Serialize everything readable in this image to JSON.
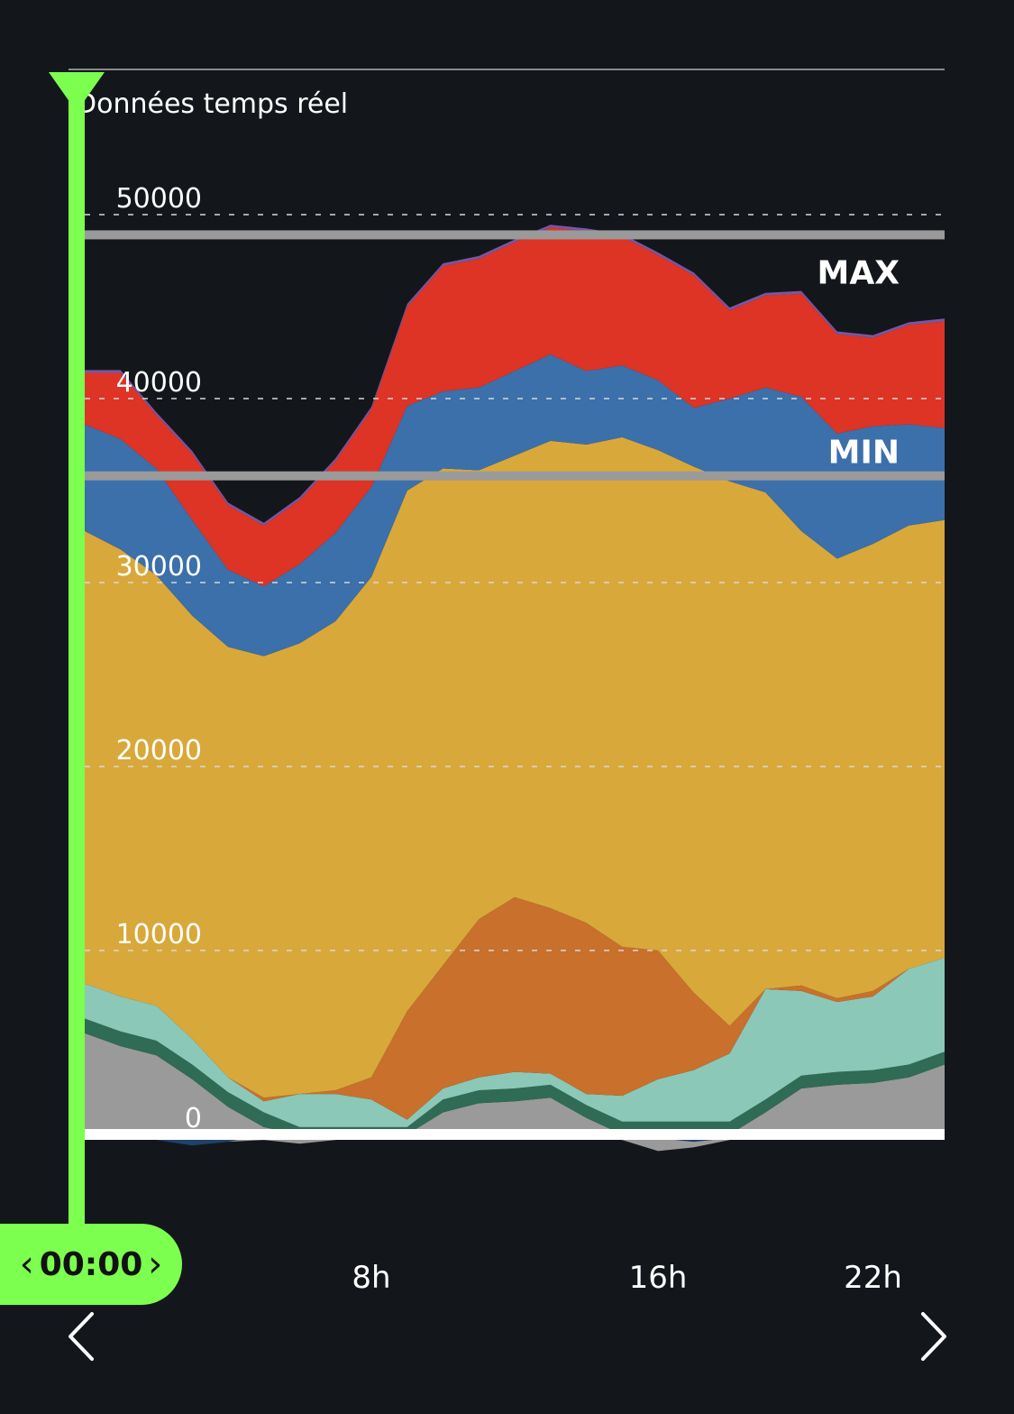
{
  "header": {
    "subtitle": "Données temps réel"
  },
  "time_selector": {
    "value": "00:00",
    "prev_icon": "chevron-left-icon",
    "next_icon": "chevron-right-icon"
  },
  "nav": {
    "prev_icon": "chevron-left-icon",
    "next_icon": "chevron-right-icon"
  },
  "colors": {
    "background": "#13171c",
    "cursor": "#7cff4e",
    "gray": "#9a9a9a",
    "darkgreen": "#2f6b55",
    "teal": "#8bc8b8",
    "orange": "#c8702c",
    "yellow": "#d9a83a",
    "blue": "#3b70aa",
    "red": "#dd3426",
    "purple": "#7a56a0",
    "navy": "#1f4268"
  },
  "chart_data": {
    "type": "area",
    "stacked": true,
    "x_unit": "hour",
    "xlim": [
      0,
      24
    ],
    "ylim": [
      0,
      50000
    ],
    "yticks": [
      "0",
      "10000",
      "20000",
      "30000",
      "40000",
      "50000"
    ],
    "ytick_values": [
      0,
      10000,
      20000,
      30000,
      40000,
      50000
    ],
    "xtick_labels": [
      "8h",
      "16h",
      "22h"
    ],
    "xtick_values": [
      8,
      16,
      22
    ],
    "grid": true,
    "reference_lines": [
      {
        "label": "MAX",
        "value": 48900
      },
      {
        "label": "MIN",
        "value": 35800
      }
    ],
    "x": [
      0,
      1,
      2,
      3,
      4,
      5,
      6,
      7,
      8,
      9,
      10,
      11,
      12,
      13,
      14,
      15,
      16,
      17,
      18,
      19,
      20,
      21,
      22,
      23,
      24
    ],
    "series": [
      {
        "color_key": "gray",
        "values": [
          5500,
          4800,
          4300,
          3000,
          1500,
          400,
          0,
          0,
          0,
          0,
          1200,
          1700,
          1800,
          2000,
          900,
          0,
          0,
          0,
          0,
          1200,
          2500,
          2700,
          2800,
          3100,
          3800
        ]
      },
      {
        "color_key": "darkgreen",
        "values": [
          800,
          800,
          800,
          800,
          800,
          800,
          400,
          400,
          400,
          400,
          700,
          700,
          700,
          700,
          700,
          700,
          700,
          700,
          700,
          700,
          700,
          700,
          700,
          700,
          700
        ]
      },
      {
        "color_key": "teal",
        "values": [
          1900,
          1900,
          1900,
          1400,
          800,
          600,
          1800,
          1800,
          1500,
          400,
          600,
          700,
          900,
          600,
          600,
          1400,
          2300,
          2800,
          3700,
          6000,
          4600,
          3800,
          4000,
          5200,
          5100
        ]
      },
      {
        "color_key": "orange",
        "values": [
          0,
          0,
          0,
          0,
          0,
          200,
          0,
          200,
          1200,
          5900,
          6700,
          8600,
          9500,
          9000,
          9300,
          8100,
          7000,
          4200,
          1500,
          0,
          300,
          200,
          300,
          0,
          0
        ]
      },
      {
        "color_key": "yellow",
        "values": [
          24600,
          24300,
          23400,
          23000,
          23400,
          24000,
          24500,
          25500,
          27200,
          28300,
          27000,
          24400,
          24000,
          25400,
          26000,
          27700,
          27200,
          28600,
          29600,
          27000,
          24700,
          23900,
          24300,
          24100,
          23800
        ]
      },
      {
        "color_key": "blue",
        "values": [
          5800,
          6000,
          5800,
          5200,
          4200,
          3800,
          4300,
          4800,
          4900,
          4600,
          4200,
          4500,
          4600,
          4700,
          4000,
          3900,
          3800,
          3200,
          4500,
          5700,
          7300,
          6800,
          6400,
          5500,
          5000
        ]
      },
      {
        "color_key": "red",
        "values": [
          2800,
          3600,
          2900,
          3600,
          3500,
          3300,
          3500,
          3900,
          4200,
          5400,
          6800,
          7000,
          7000,
          6900,
          7600,
          7000,
          6800,
          7200,
          4800,
          5000,
          5600,
          5400,
          4800,
          5400,
          5800
        ]
      },
      {
        "color_key": "purple",
        "values": [
          150,
          150,
          150,
          150,
          150,
          150,
          150,
          150,
          150,
          150,
          150,
          150,
          150,
          150,
          150,
          150,
          150,
          150,
          150,
          150,
          150,
          150,
          150,
          150,
          150
        ]
      }
    ],
    "negative_series": [
      {
        "color_key": "navy",
        "values": [
          0,
          0,
          -300,
          -600,
          -400,
          0,
          0,
          0,
          0,
          0,
          0,
          0,
          0,
          0,
          0,
          0,
          -200,
          -400,
          -200,
          0,
          0,
          0,
          0,
          0,
          0
        ]
      },
      {
        "color_key": "gray",
        "values": [
          0,
          0,
          0,
          0,
          0,
          -300,
          -500,
          -300,
          0,
          0,
          0,
          0,
          0,
          0,
          -100,
          -300,
          -700,
          -300,
          -100,
          0,
          0,
          0,
          0,
          0,
          0
        ]
      }
    ]
  }
}
